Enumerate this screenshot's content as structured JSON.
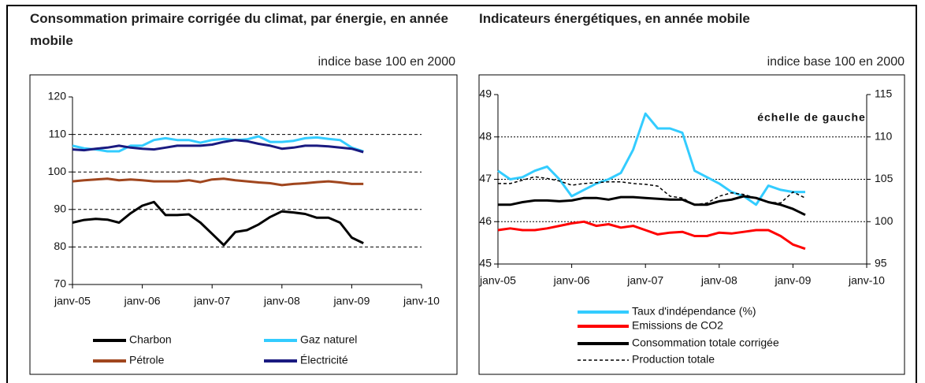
{
  "chart_data": [
    {
      "type": "line",
      "title": "Consommation primaire corrigée du climat, par énergie, en année mobile",
      "subtitle": "indice base 100 en 2000",
      "x": [
        0,
        2,
        4,
        6,
        8,
        10,
        12,
        14,
        16,
        18,
        20,
        22,
        24,
        26,
        28,
        30,
        32,
        34,
        36,
        38,
        40,
        42,
        44,
        46,
        48,
        50
      ],
      "xlim": [
        0,
        60
      ],
      "xticks": [
        {
          "value": 0,
          "label": "janv-05"
        },
        {
          "value": 12,
          "label": "janv-06"
        },
        {
          "value": 24,
          "label": "janv-07"
        },
        {
          "value": 36,
          "label": "janv-08"
        },
        {
          "value": 48,
          "label": "janv-09"
        },
        {
          "value": 60,
          "label": "janv-10"
        }
      ],
      "ylim": [
        70,
        120
      ],
      "yticks": [
        70,
        80,
        90,
        100,
        110,
        120
      ],
      "grid": true,
      "series": [
        {
          "name": "Charbon",
          "color": "#000000",
          "values": [
            86.5,
            87.2,
            87.5,
            87.3,
            86.5,
            89,
            91,
            92,
            88.5,
            88.5,
            88.7,
            86.5,
            83.5,
            80.5,
            84,
            84.5,
            86,
            88,
            89.5,
            89.2,
            88.8,
            87.8,
            87.8,
            86.5,
            82.5,
            81
          ]
        },
        {
          "name": "Gaz naturel",
          "color": "#33ccff",
          "values": [
            107,
            106.3,
            106,
            105.5,
            105.5,
            107,
            107,
            108.5,
            109,
            108.5,
            108.5,
            107.8,
            108.5,
            108.8,
            108.5,
            108.7,
            109.5,
            108,
            108,
            108.3,
            109,
            109.2,
            108.8,
            108.5,
            106.5,
            105.5
          ]
        },
        {
          "name": "Pétrole",
          "color": "#a0461e",
          "values": [
            97.5,
            97.8,
            98,
            98.2,
            97.8,
            98,
            97.8,
            97.5,
            97.5,
            97.5,
            97.8,
            97.3,
            98,
            98.2,
            97.8,
            97.5,
            97.2,
            97,
            96.5,
            96.8,
            97,
            97.3,
            97.5,
            97.2,
            96.8,
            96.8
          ]
        },
        {
          "name": "Électricité",
          "color": "#1a1a80",
          "values": [
            106,
            105.8,
            106.2,
            106.5,
            107,
            106.5,
            106.2,
            106,
            106.5,
            107,
            107,
            107,
            107.3,
            108,
            108.5,
            108.2,
            107.5,
            107,
            106.2,
            106.5,
            107,
            107,
            106.8,
            106.5,
            106.2,
            105.3
          ]
        }
      ]
    },
    {
      "type": "line",
      "title": "Indicateurs énergétiques, en année mobile",
      "subtitle": "indice base 100 en 2000",
      "annotation": "échelle de gauche",
      "x": [
        0,
        2,
        4,
        6,
        8,
        10,
        12,
        14,
        16,
        18,
        20,
        22,
        24,
        26,
        28,
        30,
        32,
        34,
        36,
        38,
        40,
        42,
        44,
        46,
        48,
        50
      ],
      "xlim": [
        0,
        60
      ],
      "xticks": [
        {
          "value": 0,
          "label": "janv-05"
        },
        {
          "value": 12,
          "label": "janv-06"
        },
        {
          "value": 24,
          "label": "janv-07"
        },
        {
          "value": 36,
          "label": "janv-08"
        },
        {
          "value": 48,
          "label": "janv-09"
        },
        {
          "value": 60,
          "label": "janv-10"
        }
      ],
      "ylim": [
        45,
        49
      ],
      "yticks": [
        45,
        46,
        47,
        48,
        49
      ],
      "y2lim": [
        95,
        115
      ],
      "y2ticks": [
        95,
        100,
        105,
        110,
        115
      ],
      "grid": true,
      "series": [
        {
          "name": "Taux d'indépendance (%)",
          "color": "#33ccff",
          "values": [
            47.2,
            47.0,
            47.05,
            47.2,
            47.3,
            47.0,
            46.6,
            46.75,
            46.9,
            47.0,
            47.15,
            47.7,
            48.55,
            48.2,
            48.2,
            48.1,
            47.2,
            47.05,
            46.9,
            46.7,
            46.6,
            46.4,
            46.85,
            46.75,
            46.7,
            46.7
          ]
        },
        {
          "name": "Emissions de CO2",
          "color": "#ff0000",
          "axis": "y2",
          "values": [
            99,
            99.2,
            99,
            99,
            99.2,
            99.5,
            99.8,
            100,
            99.5,
            99.7,
            99.3,
            99.5,
            99,
            98.5,
            98.7,
            98.8,
            98.3,
            98.3,
            98.7,
            98.6,
            98.8,
            99,
            99,
            98.3,
            97.3,
            96.8
          ]
        },
        {
          "name": "Consommation totale corrigée",
          "color": "#000000",
          "axis": "y2",
          "values": [
            102,
            102,
            102.3,
            102.5,
            102.5,
            102.4,
            102.5,
            102.8,
            102.8,
            102.6,
            102.9,
            102.9,
            102.8,
            102.7,
            102.6,
            102.6,
            102,
            102,
            102.4,
            102.6,
            103,
            102.8,
            102.3,
            102,
            101.5,
            100.8
          ]
        },
        {
          "name": "Production totale",
          "color": "#000000",
          "axis": "y2",
          "dashed": true,
          "values": [
            104.5,
            104.5,
            104.9,
            105.3,
            105.1,
            104.8,
            104.3,
            104.5,
            104.6,
            104.7,
            104.7,
            104.5,
            104.4,
            104.2,
            103,
            102.8,
            102,
            102.2,
            103,
            103.4,
            103.2,
            102.8,
            102.3,
            102.2,
            103.5,
            102.8
          ]
        }
      ]
    }
  ]
}
